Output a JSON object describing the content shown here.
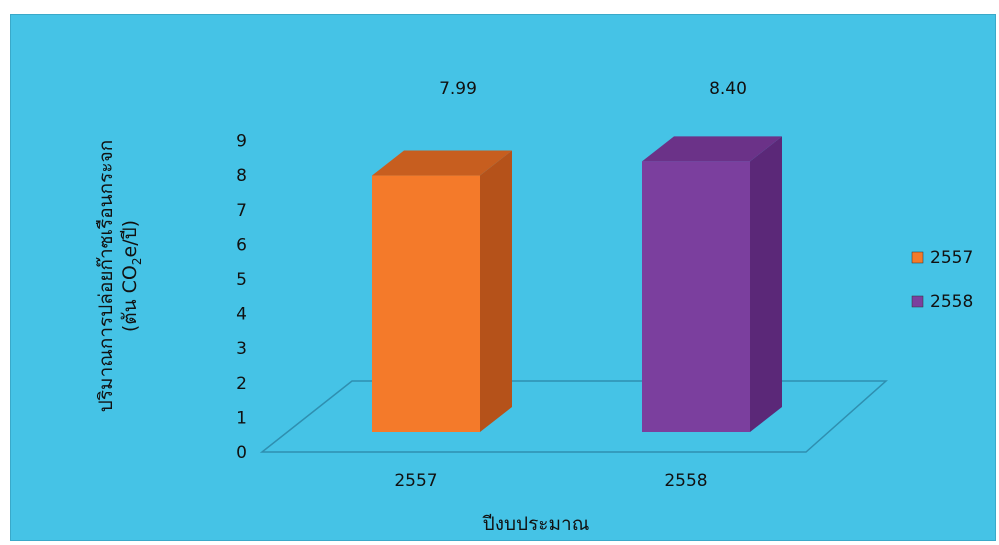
{
  "chart_data": {
    "type": "bar",
    "categories": [
      "2557",
      "2558"
    ],
    "values": [
      7.99,
      8.4
    ],
    "value_labels": [
      "7.99",
      "8.40"
    ],
    "xlabel": "ปีงบประมาณ",
    "ylabel_line1": "ปริมาณการปล่อยก๊าซเรือนกระจก",
    "ylabel_line2_prefix": "(ตัน CO",
    "ylabel_line2_sub": "2",
    "ylabel_line2_suffix": "e/ปี)",
    "ylim": [
      0,
      9
    ],
    "yticks": [
      "0",
      "1",
      "2",
      "3",
      "4",
      "5",
      "6",
      "7",
      "8",
      "9"
    ],
    "legend": [
      {
        "name": "2557",
        "color": "#f47a2a"
      },
      {
        "name": "2558",
        "color": "#7b3f9e"
      }
    ],
    "legend_position": "right",
    "grid": false,
    "colors": {
      "background": "#45c3e6",
      "bar_2557_front": "#f47a2a",
      "bar_2557_side": "#b5521a",
      "bar_2557_top": "#c75e1f",
      "bar_2558_front": "#7b3f9e",
      "bar_2558_side": "#5b2878",
      "bar_2558_top": "#6b3288"
    }
  }
}
